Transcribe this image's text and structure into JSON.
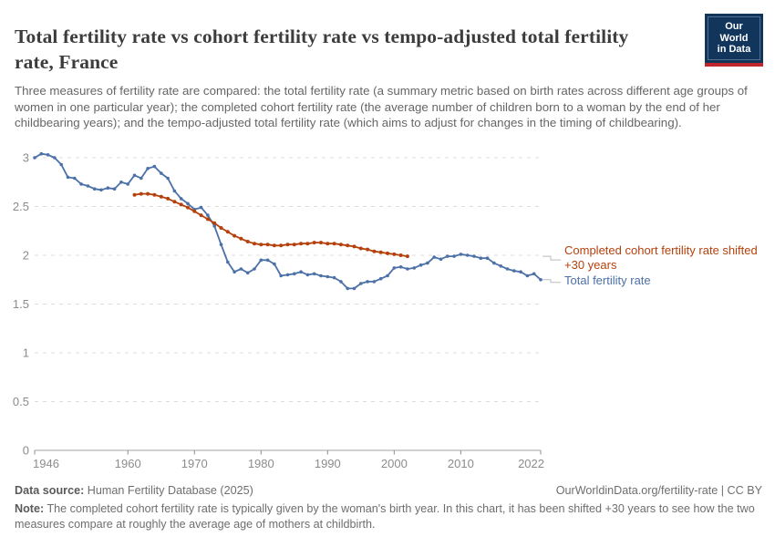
{
  "header": {
    "title": "Total fertility rate vs cohort fertility rate vs tempo-adjusted total fertility rate, France",
    "logo_line1": "Our World",
    "logo_line2": "in Data"
  },
  "subtitle": "Three measures of fertility rate are compared: the total fertility rate (a summary metric based on birth rates across different age groups of women in one particular year); the completed cohort fertility rate (the average number of children born to a woman by the end of her childbearing years); and the tempo-adjusted total fertility rate (which aims to adjust for changes in the timing of childbearing).",
  "chart_data": {
    "type": "line",
    "title": "Total fertility rate vs cohort fertility rate vs tempo-adjusted total fertility rate, France",
    "xlabel": "",
    "ylabel": "",
    "xlim": [
      1946,
      2022
    ],
    "ylim": [
      0,
      3
    ],
    "xticks": [
      1946,
      1960,
      1970,
      1980,
      1990,
      2000,
      2010,
      2022
    ],
    "yticks": [
      0,
      0.5,
      1,
      1.5,
      2,
      2.5,
      3
    ],
    "grid": "horizontal dashed",
    "legend_position": "right line-end labels",
    "marker": "point-on-line",
    "series": [
      {
        "name": "Total fertility rate",
        "color": "#4c70a8",
        "x": [
          1946,
          1947,
          1948,
          1949,
          1950,
          1951,
          1952,
          1953,
          1954,
          1955,
          1956,
          1957,
          1958,
          1959,
          1960,
          1961,
          1962,
          1963,
          1964,
          1965,
          1966,
          1967,
          1968,
          1969,
          1970,
          1971,
          1972,
          1973,
          1974,
          1975,
          1976,
          1977,
          1978,
          1979,
          1980,
          1981,
          1982,
          1983,
          1984,
          1985,
          1986,
          1987,
          1988,
          1989,
          1990,
          1991,
          1992,
          1993,
          1994,
          1995,
          1996,
          1997,
          1998,
          1999,
          2000,
          2001,
          2002,
          2003,
          2004,
          2005,
          2006,
          2007,
          2008,
          2009,
          2010,
          2011,
          2012,
          2013,
          2014,
          2015,
          2016,
          2017,
          2018,
          2019,
          2020,
          2021,
          2022
        ],
        "values": [
          3.0,
          3.04,
          3.03,
          3.0,
          2.93,
          2.8,
          2.79,
          2.73,
          2.71,
          2.68,
          2.67,
          2.69,
          2.68,
          2.75,
          2.73,
          2.82,
          2.79,
          2.89,
          2.91,
          2.84,
          2.79,
          2.66,
          2.58,
          2.53,
          2.47,
          2.49,
          2.41,
          2.3,
          2.11,
          1.93,
          1.83,
          1.86,
          1.82,
          1.86,
          1.95,
          1.95,
          1.91,
          1.79,
          1.8,
          1.81,
          1.83,
          1.8,
          1.81,
          1.79,
          1.78,
          1.77,
          1.73,
          1.66,
          1.66,
          1.71,
          1.73,
          1.73,
          1.76,
          1.79,
          1.87,
          1.88,
          1.86,
          1.87,
          1.9,
          1.92,
          1.98,
          1.96,
          1.99,
          1.99,
          2.01,
          2.0,
          1.99,
          1.97,
          1.97,
          1.92,
          1.89,
          1.86,
          1.84,
          1.83,
          1.79,
          1.81,
          1.75
        ]
      },
      {
        "name": "Completed cohort fertility rate shifted +30 years",
        "color": "#b5400c",
        "x": [
          1961,
          1962,
          1963,
          1964,
          1965,
          1966,
          1967,
          1968,
          1969,
          1970,
          1971,
          1972,
          1973,
          1974,
          1975,
          1976,
          1977,
          1978,
          1979,
          1980,
          1981,
          1982,
          1983,
          1984,
          1985,
          1986,
          1987,
          1988,
          1989,
          1990,
          1991,
          1992,
          1993,
          1994,
          1995,
          1996,
          1997,
          1998,
          1999,
          2000,
          2001,
          2002
        ],
        "values": [
          2.62,
          2.63,
          2.63,
          2.62,
          2.6,
          2.58,
          2.55,
          2.52,
          2.49,
          2.45,
          2.41,
          2.37,
          2.33,
          2.28,
          2.24,
          2.2,
          2.17,
          2.14,
          2.12,
          2.11,
          2.11,
          2.1,
          2.1,
          2.11,
          2.11,
          2.12,
          2.12,
          2.13,
          2.13,
          2.12,
          2.12,
          2.11,
          2.1,
          2.09,
          2.07,
          2.06,
          2.04,
          2.03,
          2.02,
          2.01,
          2.0,
          1.99
        ]
      }
    ]
  },
  "footer": {
    "source_label": "Data source:",
    "source_value": " Human Fertility Database (2025)",
    "attribution": "OurWorldinData.org/fertility-rate | CC BY",
    "note_label": "Note:",
    "note_value": " The completed cohort fertility rate is typically given by the woman's birth year. In this chart, it has been shifted +30 years to see how the two measures compare at roughly the average age of mothers at childbirth."
  },
  "colors": {
    "tfr_line": "#4c70a8",
    "cohort_line": "#b5400c",
    "gridline": "#dcdcdc",
    "axis_line": "#a3a3a3",
    "tick_label": "#8c8c8c",
    "connector": "#bbbbbb",
    "logo_navy": "#12355c",
    "logo_red": "#c0272d"
  }
}
